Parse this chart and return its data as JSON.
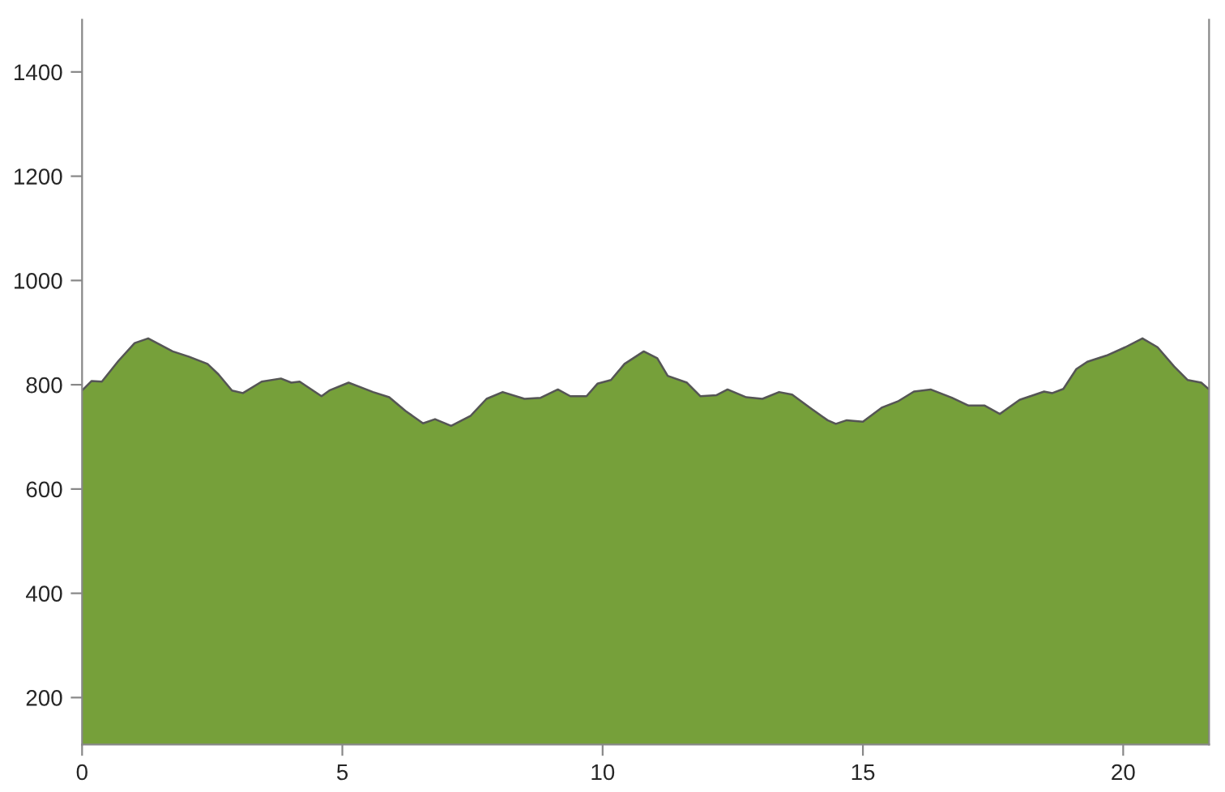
{
  "chart_data": {
    "type": "area",
    "xlim": [
      0,
      21.65
    ],
    "xticks": [
      0,
      5,
      10,
      15,
      20
    ],
    "ylim": [
      110,
      1500
    ],
    "yticks": [
      200,
      400,
      600,
      800,
      1000,
      1200,
      1400
    ],
    "grid": false,
    "legend": false,
    "series": [
      {
        "color": "#76a03a",
        "x": [
          0,
          0.18,
          0.38,
          0.7,
          1.01,
          1.27,
          1.74,
          2.05,
          2.41,
          2.62,
          2.88,
          3.09,
          3.45,
          3.82,
          4.02,
          4.18,
          4.6,
          4.75,
          5.12,
          5.33,
          5.59,
          5.9,
          6.21,
          6.55,
          6.78,
          7.09,
          7.46,
          7.77,
          8.08,
          8.5,
          8.81,
          9.14,
          9.38,
          9.69,
          9.9,
          10.16,
          10.42,
          10.79,
          11.05,
          11.25,
          11.62,
          11.88,
          12.19,
          12.4,
          12.76,
          13.07,
          13.39,
          13.64,
          14.01,
          14.32,
          14.48,
          14.69,
          15.0,
          15.36,
          15.67,
          15.98,
          16.3,
          16.71,
          17.03,
          17.34,
          17.63,
          18.01,
          18.48,
          18.64,
          18.85,
          19.1,
          19.31,
          19.68,
          20.04,
          20.37,
          20.66,
          20.98,
          21.24,
          21.5,
          21.65
        ],
        "values": [
          789,
          807,
          806,
          846,
          880,
          889,
          864,
          854,
          840,
          820,
          789,
          784,
          806,
          812,
          804,
          806,
          778,
          789,
          804,
          796,
          786,
          776,
          750,
          726,
          734,
          721,
          740,
          773,
          786,
          773,
          775,
          791,
          778,
          778,
          802,
          809,
          840,
          864,
          851,
          817,
          804,
          778,
          780,
          791,
          776,
          773,
          786,
          781,
          754,
          732,
          725,
          732,
          729,
          756,
          768,
          787,
          791,
          775,
          760,
          760,
          744,
          771,
          787,
          784,
          792,
          830,
          844,
          856,
          872,
          889,
          872,
          835,
          809,
          804,
          791
        ]
      }
    ]
  }
}
